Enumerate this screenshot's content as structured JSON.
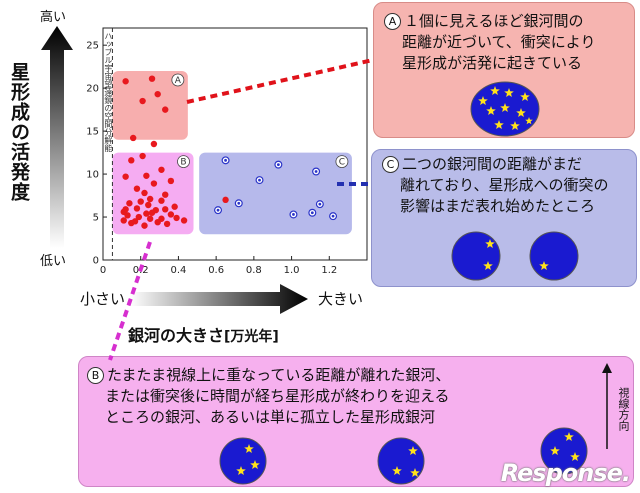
{
  "y_axis": {
    "title": "星形成の活発度",
    "high": "高い",
    "low": "低い"
  },
  "x_axis": {
    "title": "銀河の大きさ",
    "unit": "[万光年]",
    "small": "小さい",
    "large": "大きい"
  },
  "hubble_limit_label": "ハッブル宇宙望遠鏡の空間分解能",
  "regions": {
    "A": "A",
    "B": "B",
    "C": "C"
  },
  "callouts": {
    "A": {
      "marker": "A",
      "line1": "１個に見えるほど銀河間の",
      "line2": "距離が近づいて、衝突により",
      "line3": "星形成が活発に起きている"
    },
    "C": {
      "marker": "C",
      "line1": "二つの銀河間の距離がまだ",
      "line2": "離れており、星形成への衝突の",
      "line3": "影響はまだ表れ始めたところ"
    },
    "B": {
      "marker": "B",
      "line1": "たまたま視線上に重なっている距離が離れた銀河、",
      "line2": "または衝突後に時間が経ち星形成が終わりを迎える",
      "line3": "ところの銀河、あるいは単に孤立した星形成銀河",
      "sightline": "視線方向"
    }
  },
  "watermark": "Response.",
  "colors": {
    "red_dot": "#e8191e",
    "blue_dot": "#2a34c8",
    "galaxy": "#1a1ad0",
    "star": "#ffe21a",
    "region_A": "#f6a0a0",
    "region_B": "#f39df0",
    "region_C": "#a9ade8"
  },
  "chart_data": {
    "type": "scatter",
    "xlim": [
      0,
      1.4
    ],
    "ylim": [
      0,
      27
    ],
    "x_ticks": [
      "0",
      "0.2",
      "0.4",
      "0.6",
      "0.8",
      "1.0",
      "1.2"
    ],
    "y_ticks": [
      "0",
      "5",
      "10",
      "15",
      "20",
      "25"
    ],
    "vline_x": 0.05,
    "series": [
      {
        "marker": "filled",
        "x": [
          0.12,
          0.26,
          0.21,
          0.29,
          0.33,
          0.16,
          0.27,
          0.21,
          0.15,
          0.23,
          0.31,
          0.12,
          0.27,
          0.36,
          0.18,
          0.22,
          0.33,
          0.25,
          0.14,
          0.31,
          0.38,
          0.18,
          0.11,
          0.28,
          0.23,
          0.13,
          0.19,
          0.25,
          0.36,
          0.11,
          0.29,
          0.43,
          0.34,
          0.22,
          0.15,
          0.31,
          0.17,
          0.26,
          0.39,
          0.12,
          0.24,
          0.2,
          0.33,
          0.65
        ],
        "y": [
          20.8,
          21.1,
          18.5,
          19.3,
          17.5,
          14.2,
          13.5,
          12.1,
          11.6,
          9.8,
          10.5,
          9.7,
          8.9,
          9.2,
          8.3,
          7.8,
          7.6,
          7.1,
          6.6,
          6.9,
          6.2,
          6.0,
          5.6,
          5.8,
          5.4,
          5.2,
          5.0,
          4.8,
          5.3,
          4.6,
          4.4,
          4.6,
          4.2,
          4.0,
          4.3,
          4.8,
          4.5,
          5.5,
          4.9,
          5.9,
          6.4,
          6.8,
          5.9,
          7.0
        ]
      },
      {
        "marker": "ring",
        "x": [
          0.65,
          0.83,
          0.72,
          0.61,
          0.93,
          1.01,
          1.11,
          1.15,
          1.22,
          1.13
        ],
        "y": [
          11.6,
          9.3,
          6.6,
          5.8,
          11.1,
          5.3,
          5.5,
          6.5,
          5.1,
          10.3
        ]
      }
    ],
    "regions": [
      {
        "label": "A",
        "x": [
          0.05,
          0.45
        ],
        "y": [
          14,
          22
        ]
      },
      {
        "label": "B",
        "x": [
          0.05,
          0.48
        ],
        "y": [
          3,
          12.5
        ]
      },
      {
        "label": "C",
        "x": [
          0.51,
          1.32
        ],
        "y": [
          3,
          12.5
        ]
      }
    ]
  }
}
